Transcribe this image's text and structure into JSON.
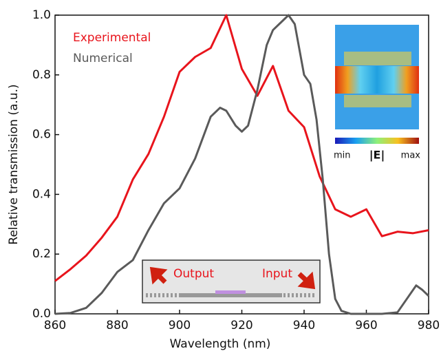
{
  "chart_data": {
    "type": "line",
    "x_label": "Wavelength (nm)",
    "y_label": "Relative transmission (a.u.)",
    "xlim": [
      860,
      980
    ],
    "ylim": [
      0,
      1
    ],
    "xticks": [
      860,
      880,
      900,
      920,
      940,
      960,
      980
    ],
    "yticks": [
      {
        "value": 0,
        "label": "0.0"
      },
      0.2,
      0.4,
      0.6,
      0.8,
      {
        "value": 1,
        "label": "1.0"
      }
    ],
    "series": [
      {
        "name": "Experimental",
        "color": "#e8141c",
        "x": [
          860,
          865,
          870,
          875,
          880,
          885,
          890,
          895,
          900,
          905,
          910,
          915,
          920,
          925,
          930,
          935,
          940,
          945,
          950,
          955,
          960,
          965,
          970,
          975,
          980
        ],
        "values": [
          0.11,
          0.15,
          0.195,
          0.255,
          0.325,
          0.45,
          0.535,
          0.66,
          0.81,
          0.86,
          0.89,
          1.0,
          0.82,
          0.73,
          0.83,
          0.68,
          0.625,
          0.46,
          0.35,
          0.325,
          0.35,
          0.26,
          0.275,
          0.27,
          0.28
        ]
      },
      {
        "name": "Numerical",
        "color": "#5a5a5a",
        "x": [
          860,
          865,
          870,
          875,
          880,
          885,
          890,
          895,
          900,
          905,
          910,
          913,
          915,
          918,
          920,
          922,
          925,
          928,
          930,
          932,
          935,
          937,
          940,
          942,
          944,
          946,
          948,
          950,
          952,
          955,
          960,
          965,
          970,
          973,
          976,
          978,
          980
        ],
        "values": [
          0,
          0.003,
          0.02,
          0.07,
          0.14,
          0.18,
          0.28,
          0.37,
          0.42,
          0.52,
          0.66,
          0.69,
          0.68,
          0.63,
          0.61,
          0.63,
          0.75,
          0.9,
          0.95,
          0.97,
          1.0,
          0.97,
          0.8,
          0.77,
          0.65,
          0.45,
          0.2,
          0.05,
          0.01,
          0,
          0,
          0,
          0.005,
          0.05,
          0.095,
          0.08,
          0.06
        ]
      }
    ],
    "inset_labels": [
      "min",
      "|E|",
      "max"
    ],
    "annotations": [
      "Output",
      "Input"
    ]
  }
}
